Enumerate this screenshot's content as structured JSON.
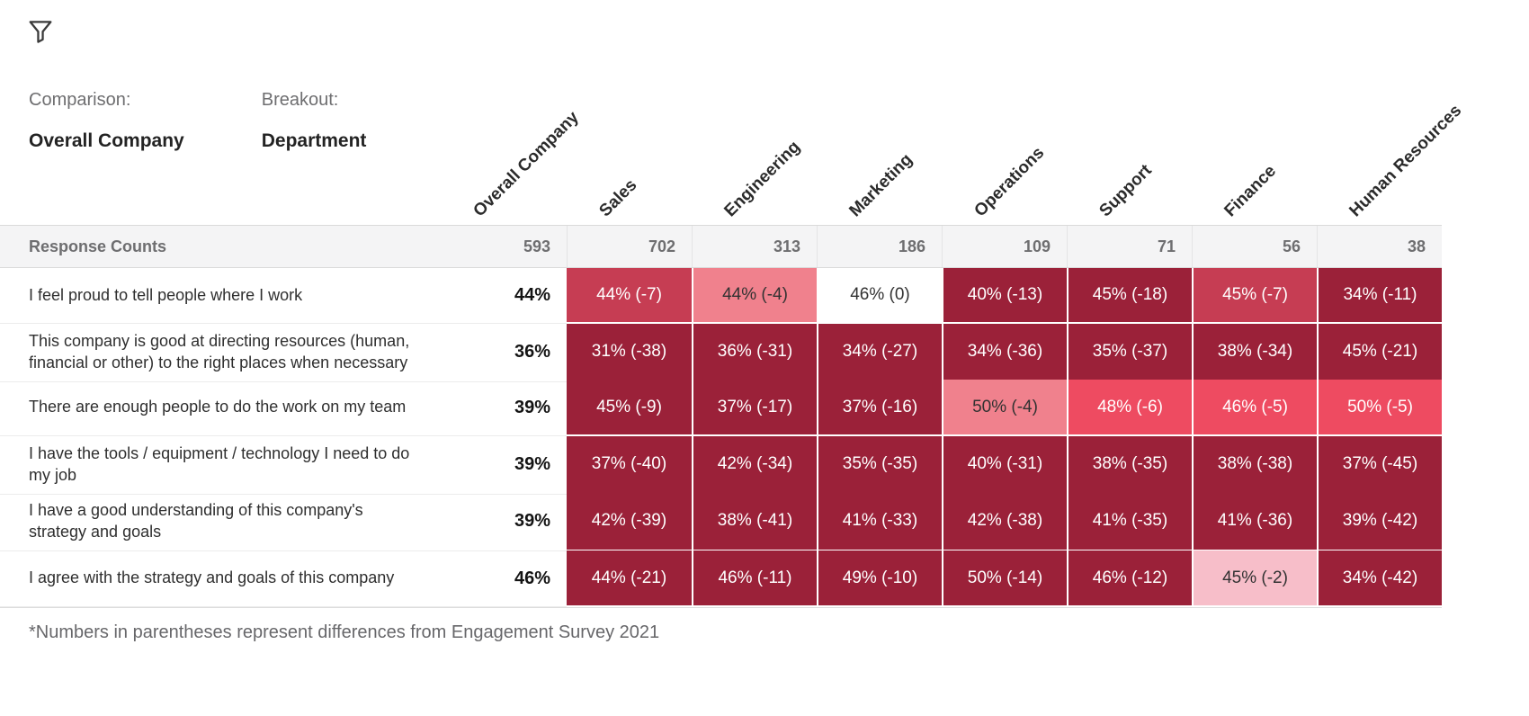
{
  "controls": {
    "comparison_label": "Comparison:",
    "comparison_value": "Overall Company",
    "breakout_label": "Breakout:",
    "breakout_value": "Department"
  },
  "palette": {
    "dark": "#9b2139",
    "medium": "#c63d53",
    "bright": "#ee4b61",
    "light": "#f0818d",
    "xlight": "#f7bec9",
    "none": "#ffffff",
    "text_on_dark": "#ffffff",
    "text_on_light": "#323232"
  },
  "chart_data": {
    "type": "heatmap",
    "title": "",
    "columns": [
      "Overall Company",
      "Sales",
      "Engineering",
      "Marketing",
      "Operations",
      "Support",
      "Finance",
      "Human Resources"
    ],
    "response_counts_label": "Response Counts",
    "response_counts": [
      593,
      702,
      313,
      186,
      109,
      71,
      56,
      38
    ],
    "rows": [
      {
        "label": "I feel proud to tell people where I work",
        "overall": "44%",
        "cells": [
          {
            "text": "44% (-7)",
            "value": 44,
            "diff": -7,
            "tone": "medium"
          },
          {
            "text": "44% (-4)",
            "value": 44,
            "diff": -4,
            "tone": "light"
          },
          {
            "text": "46% (0)",
            "value": 46,
            "diff": 0,
            "tone": "none"
          },
          {
            "text": "40% (-13)",
            "value": 40,
            "diff": -13,
            "tone": "dark"
          },
          {
            "text": "45% (-18)",
            "value": 45,
            "diff": -18,
            "tone": "dark"
          },
          {
            "text": "45% (-7)",
            "value": 45,
            "diff": -7,
            "tone": "medium"
          },
          {
            "text": "34% (-11)",
            "value": 34,
            "diff": -11,
            "tone": "dark"
          }
        ]
      },
      {
        "label": "This company is good at directing resources (human, financial or other) to the right places when necessary",
        "overall": "36%",
        "cells": [
          {
            "text": "31% (-38)",
            "value": 31,
            "diff": -38,
            "tone": "dark"
          },
          {
            "text": "36% (-31)",
            "value": 36,
            "diff": -31,
            "tone": "dark"
          },
          {
            "text": "34% (-27)",
            "value": 34,
            "diff": -27,
            "tone": "dark"
          },
          {
            "text": "34% (-36)",
            "value": 34,
            "diff": -36,
            "tone": "dark"
          },
          {
            "text": "35% (-37)",
            "value": 35,
            "diff": -37,
            "tone": "dark"
          },
          {
            "text": "38% (-34)",
            "value": 38,
            "diff": -34,
            "tone": "dark"
          },
          {
            "text": "45% (-21)",
            "value": 45,
            "diff": -21,
            "tone": "dark"
          }
        ]
      },
      {
        "label": "There are enough people to do the work on my team",
        "overall": "39%",
        "cells": [
          {
            "text": "45% (-9)",
            "value": 45,
            "diff": -9,
            "tone": "dark"
          },
          {
            "text": "37% (-17)",
            "value": 37,
            "diff": -17,
            "tone": "dark"
          },
          {
            "text": "37% (-16)",
            "value": 37,
            "diff": -16,
            "tone": "dark"
          },
          {
            "text": "50% (-4)",
            "value": 50,
            "diff": -4,
            "tone": "light"
          },
          {
            "text": "48% (-6)",
            "value": 48,
            "diff": -6,
            "tone": "bright"
          },
          {
            "text": "46% (-5)",
            "value": 46,
            "diff": -5,
            "tone": "bright"
          },
          {
            "text": "50% (-5)",
            "value": 50,
            "diff": -5,
            "tone": "bright"
          }
        ]
      },
      {
        "label": "I have the tools / equipment / technology I need to do my job",
        "overall": "39%",
        "cells": [
          {
            "text": "37% (-40)",
            "value": 37,
            "diff": -40,
            "tone": "dark"
          },
          {
            "text": "42% (-34)",
            "value": 42,
            "diff": -34,
            "tone": "dark"
          },
          {
            "text": "35% (-35)",
            "value": 35,
            "diff": -35,
            "tone": "dark"
          },
          {
            "text": "40% (-31)",
            "value": 40,
            "diff": -31,
            "tone": "dark"
          },
          {
            "text": "38% (-35)",
            "value": 38,
            "diff": -35,
            "tone": "dark"
          },
          {
            "text": "38% (-38)",
            "value": 38,
            "diff": -38,
            "tone": "dark"
          },
          {
            "text": "37% (-45)",
            "value": 37,
            "diff": -45,
            "tone": "dark"
          }
        ]
      },
      {
        "label": "I have a good understanding of this company's strategy and goals",
        "overall": "39%",
        "cells": [
          {
            "text": "42% (-39)",
            "value": 42,
            "diff": -39,
            "tone": "dark"
          },
          {
            "text": "38% (-41)",
            "value": 38,
            "diff": -41,
            "tone": "dark"
          },
          {
            "text": "41% (-33)",
            "value": 41,
            "diff": -33,
            "tone": "dark"
          },
          {
            "text": "42% (-38)",
            "value": 42,
            "diff": -38,
            "tone": "dark"
          },
          {
            "text": "41% (-35)",
            "value": 41,
            "diff": -35,
            "tone": "dark"
          },
          {
            "text": "41% (-36)",
            "value": 41,
            "diff": -36,
            "tone": "dark"
          },
          {
            "text": "39% (-42)",
            "value": 39,
            "diff": -42,
            "tone": "dark"
          }
        ]
      },
      {
        "label": "I agree with the strategy and goals of this company",
        "overall": "46%",
        "cells": [
          {
            "text": "44% (-21)",
            "value": 44,
            "diff": -21,
            "tone": "dark"
          },
          {
            "text": "46% (-11)",
            "value": 46,
            "diff": -11,
            "tone": "dark"
          },
          {
            "text": "49% (-10)",
            "value": 49,
            "diff": -10,
            "tone": "dark"
          },
          {
            "text": "50% (-14)",
            "value": 50,
            "diff": -14,
            "tone": "dark"
          },
          {
            "text": "46% (-12)",
            "value": 46,
            "diff": -12,
            "tone": "dark"
          },
          {
            "text": "45% (-2)",
            "value": 45,
            "diff": -2,
            "tone": "xlight"
          },
          {
            "text": "34% (-42)",
            "value": 34,
            "diff": -42,
            "tone": "dark"
          }
        ]
      }
    ],
    "footnote": "*Numbers in parentheses represent differences from Engagement Survey 2021",
    "legend_position": "none",
    "grid": "white-gaps"
  }
}
